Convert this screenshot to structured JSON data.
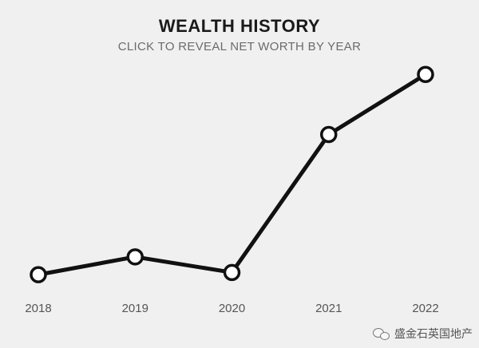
{
  "header": {
    "title": "WEALTH HISTORY",
    "subtitle": "CLICK TO REVEAL NET WORTH BY YEAR"
  },
  "chart_data": {
    "type": "line",
    "title": "WEALTH HISTORY",
    "subtitle": "CLICK TO REVEAL NET WORTH BY YEAR",
    "x": [
      "2018",
      "2019",
      "2020",
      "2021",
      "2022"
    ],
    "series": [
      {
        "values": [
          1.0,
          1.8,
          1.1,
          7.3,
          10.0
        ]
      }
    ],
    "ylim": [
      0,
      11.3
    ],
    "grid": false,
    "line_color": "#111111",
    "marker_fill": "#ffffff"
  },
  "watermark": {
    "icon": "wechat-icon",
    "text": "盛金石英国地产"
  }
}
